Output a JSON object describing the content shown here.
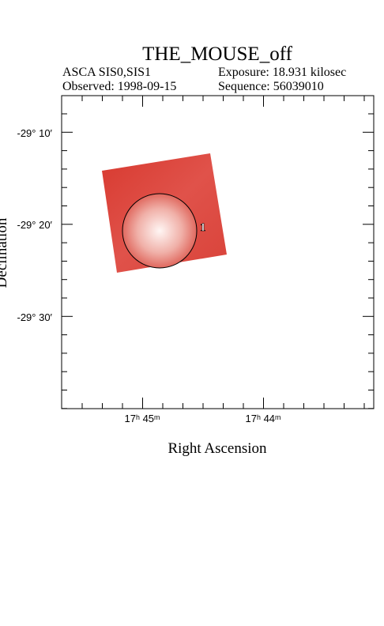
{
  "header": {
    "title": "THE_MOUSE_off",
    "instrument": "ASCA SIS0,SIS1",
    "exposure": "Exposure: 18.931 kilosec",
    "observed": "Observed: 1998-09-15",
    "sequence": "Sequence: 56039010"
  },
  "plot": {
    "x_label": "Right Ascension",
    "y_label": "Declination",
    "x_tick_labels": [
      "17ʰ 45ᵐ",
      "17ʰ 44ᵐ"
    ],
    "y_tick_labels": [
      "-29° 10′",
      "-29° 20′",
      "-29° 30′"
    ],
    "region_label": "1"
  }
}
